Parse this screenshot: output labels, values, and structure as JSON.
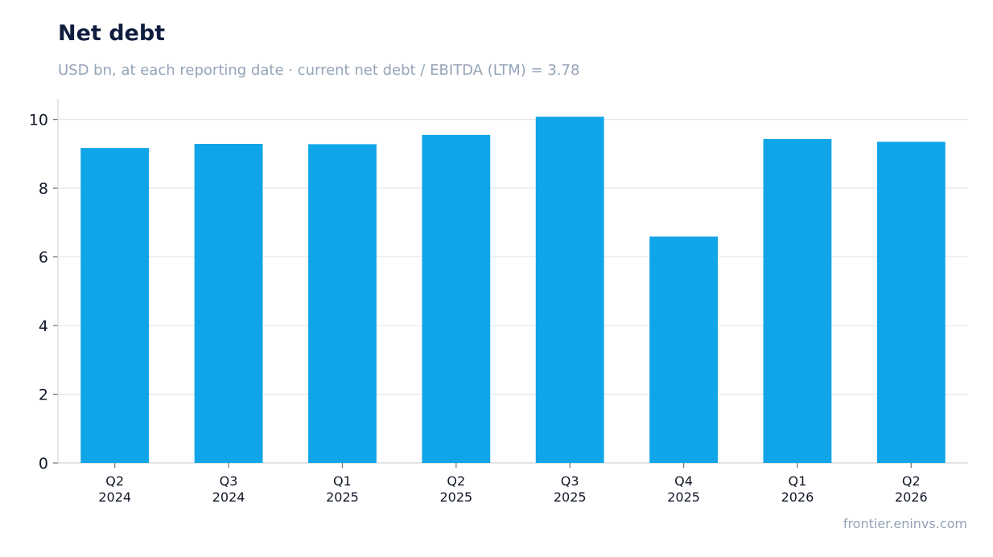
{
  "title": "Net debt",
  "subtitle": "USD bn, at each reporting date · current net debt / EBITDA (LTM) = 3.78",
  "source": "frontier.eninvs.com",
  "colors": {
    "bar": "#10a5e8",
    "grid": "#e5e7eb",
    "axis": "#d1d5db",
    "title": "#0f1d3f",
    "muted": "#94a3b8"
  },
  "chart_data": {
    "type": "bar",
    "title": "Net debt",
    "subtitle": "USD bn, at each reporting date · current net debt / EBITDA (LTM) = 3.78",
    "categories": [
      [
        "Q2",
        "2024"
      ],
      [
        "Q3",
        "2024"
      ],
      [
        "Q1",
        "2025"
      ],
      [
        "Q2",
        "2025"
      ],
      [
        "Q3",
        "2025"
      ],
      [
        "Q4",
        "2025"
      ],
      [
        "Q1",
        "2026"
      ],
      [
        "Q2",
        "2026"
      ]
    ],
    "values": [
      9.17,
      9.29,
      9.28,
      9.55,
      10.08,
      6.59,
      9.43,
      9.35
    ],
    "ylim": [
      0,
      10.6
    ],
    "yticks": [
      0,
      2,
      4,
      6,
      8,
      10
    ],
    "xlabel": "",
    "ylabel": "",
    "grid": true,
    "legend": "none"
  }
}
